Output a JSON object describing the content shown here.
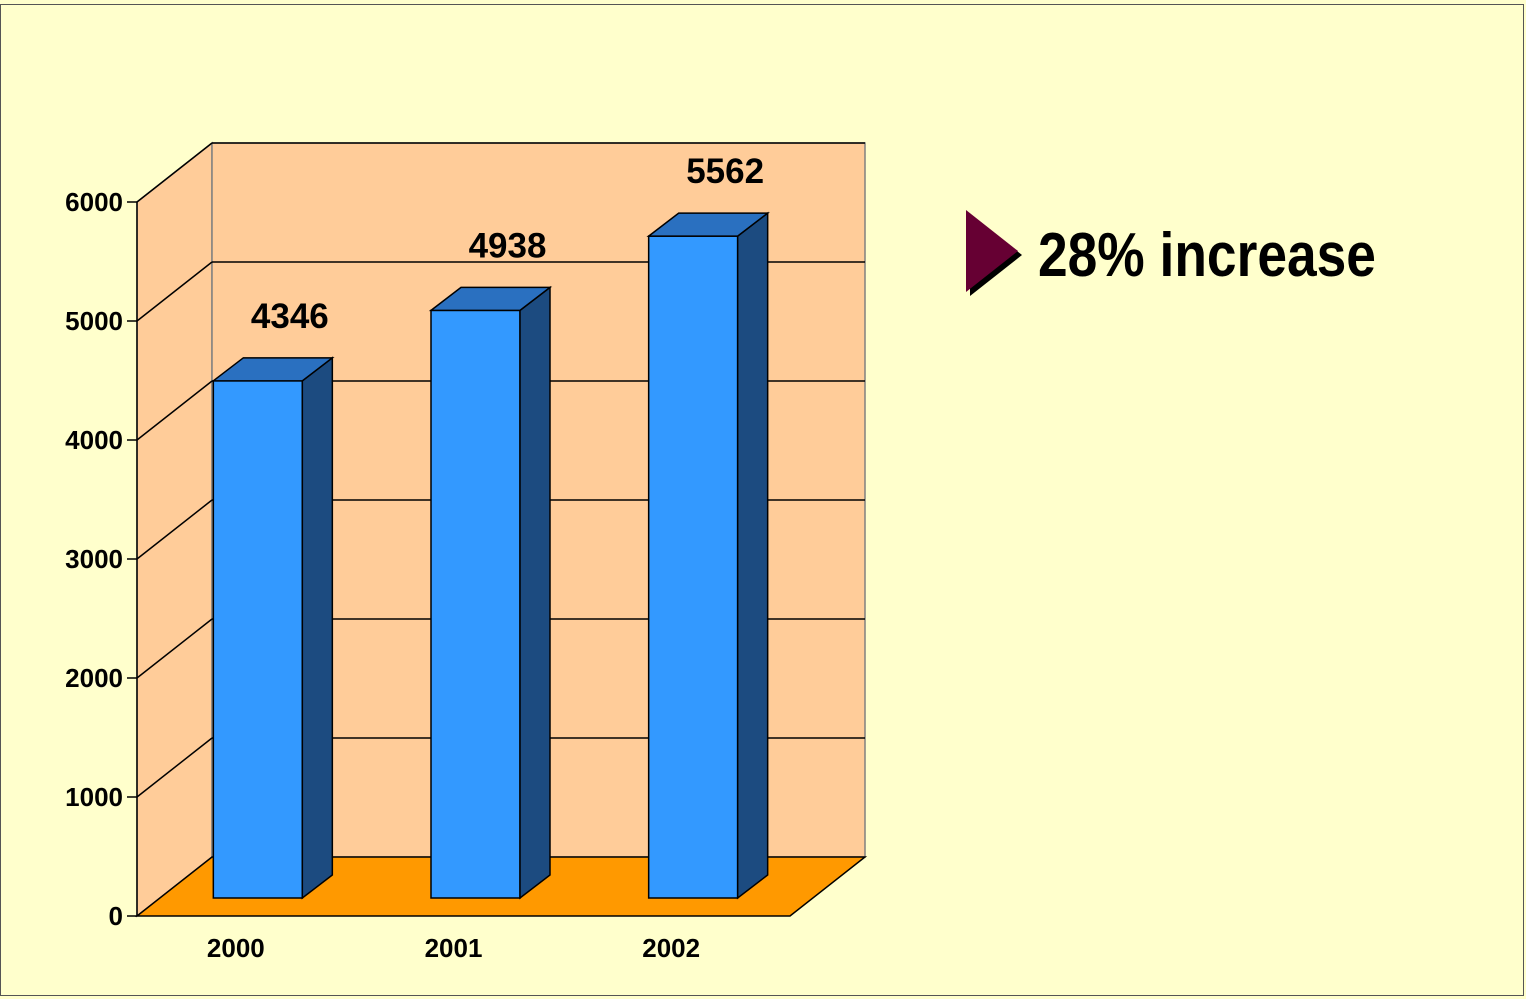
{
  "chart_data": {
    "type": "bar",
    "categories": [
      "2000",
      "2001",
      "2002"
    ],
    "values": [
      4346,
      4938,
      5562
    ],
    "ylim": [
      0,
      6000
    ],
    "yticks": [
      0,
      1000,
      2000,
      3000,
      4000,
      5000,
      6000
    ],
    "grid": true,
    "style": "3d-column",
    "colors": {
      "bar_front": "#3399ff",
      "bar_side": "#1c4b80",
      "bar_top": "#2a70c0",
      "back_wall": "#ffcc99",
      "floor": "#ff9900",
      "background": "#ffffcc"
    }
  },
  "callout": {
    "icon": "triangle-bullet-icon",
    "icon_color": "#660033",
    "text": "28% increase"
  }
}
